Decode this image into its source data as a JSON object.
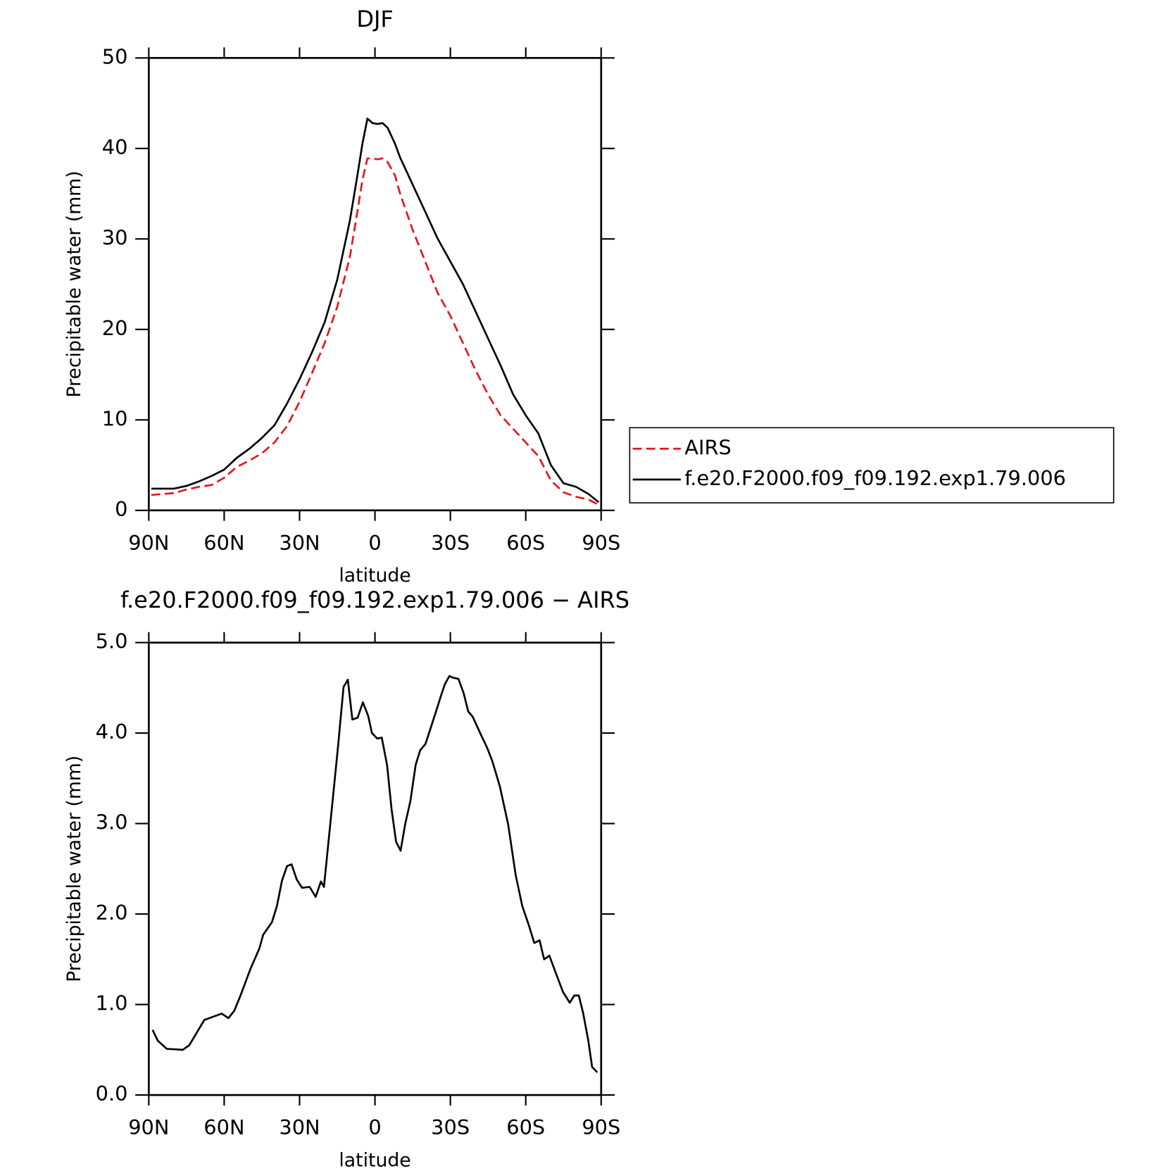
{
  "chart_data": [
    {
      "type": "line",
      "title": "DJF",
      "x_label": "latitude",
      "y_label": "Precipitable water (mm)",
      "xlim": [
        90,
        -90
      ],
      "xticks": [
        {
          "value": 90,
          "label": "90N"
        },
        {
          "value": 60,
          "label": "60N"
        },
        {
          "value": 30,
          "label": "30N"
        },
        0,
        {
          "value": -30,
          "label": "30S"
        },
        {
          "value": -60,
          "label": "60S"
        },
        {
          "value": -90,
          "label": "90S"
        }
      ],
      "ylim": [
        0,
        50
      ],
      "yticks": [
        0,
        10,
        20,
        30,
        40,
        50
      ],
      "legend": "outside-right",
      "x": [
        89,
        85,
        80,
        75,
        70,
        65,
        60,
        55,
        50,
        45,
        40,
        35,
        30,
        25,
        20,
        15,
        10,
        7,
        5,
        3,
        1,
        -1,
        -3,
        -5,
        -8,
        -10,
        -15,
        -20,
        -25,
        -30,
        -35,
        -40,
        -45,
        -50,
        -55,
        -60,
        -65,
        -70,
        -75,
        -80,
        -85,
        -89
      ],
      "series": [
        {
          "name": "AIRS",
          "color": "#e8141a",
          "dashed": true,
          "values": [
            1.7,
            1.8,
            1.9,
            2.3,
            2.6,
            2.8,
            3.6,
            4.8,
            5.5,
            6.3,
            7.5,
            9.3,
            12,
            15.2,
            18.5,
            22.5,
            28,
            33,
            36.5,
            38.9,
            38.9,
            38.8,
            38.9,
            38.5,
            37,
            35,
            31,
            27.5,
            24,
            21.5,
            18.5,
            15.5,
            12.8,
            10.5,
            9,
            7.5,
            6,
            3.3,
            2,
            1.5,
            1.2,
            0.6
          ]
        },
        {
          "name": "f.e20.F2000.f09_f09.192.exp1.79.006",
          "color": "#000000",
          "dashed": false,
          "values": [
            2.4,
            2.4,
            2.4,
            2.7,
            3.2,
            3.8,
            4.5,
            5.8,
            6.8,
            8,
            9.4,
            11.8,
            14.5,
            17.5,
            20.8,
            25.5,
            32,
            37,
            40.5,
            43.3,
            42.8,
            42.7,
            42.8,
            42.3,
            40.5,
            39,
            36,
            33,
            30,
            27.5,
            25,
            22,
            19,
            16,
            12.8,
            10.5,
            8.5,
            5,
            3,
            2.6,
            1.8,
            0.9
          ]
        }
      ]
    },
    {
      "type": "line",
      "title": "f.e20.F2000.f09_f09.192.exp1.79.006 − AIRS",
      "x_label": "latitude",
      "y_label": "Precipitable water (mm)",
      "xlim": [
        90,
        -90
      ],
      "xticks": [
        {
          "value": 90,
          "label": "90N"
        },
        {
          "value": 60,
          "label": "60N"
        },
        {
          "value": 30,
          "label": "30N"
        },
        0,
        {
          "value": -30,
          "label": "30S"
        },
        {
          "value": -60,
          "label": "60S"
        },
        {
          "value": -90,
          "label": "90S"
        }
      ],
      "ylim": [
        0,
        5
      ],
      "yticks": [
        {
          "value": 0,
          "label": "0.0"
        },
        {
          "value": 1,
          "label": "1.0"
        },
        {
          "value": 2,
          "label": "2.0"
        },
        {
          "value": 3,
          "label": "3.0"
        },
        {
          "value": 4,
          "label": "4.0"
        },
        {
          "value": 5,
          "label": "5.0"
        }
      ],
      "x": [
        88.5,
        86.4,
        82.8,
        76.5,
        73.9,
        67.9,
        61,
        58.3,
        56,
        53.5,
        49.6,
        46,
        44.5,
        41,
        39,
        37,
        35,
        33.2,
        31.1,
        29,
        26,
        23.6,
        21.5,
        20.3,
        16.1,
        14.6,
        12.5,
        10.8,
        9,
        6.9,
        4.8,
        2.7,
        1.2,
        -0.9,
        -2.7,
        -4.8,
        -6.6,
        -8.4,
        -10.2,
        -12,
        -14.1,
        -16.2,
        -18,
        -20.1,
        -24.2,
        -26,
        -27.8,
        -29.6,
        -31.4,
        -33.2,
        -35.3,
        -37.1,
        -38.9,
        -42.2,
        -44.6,
        -46.7,
        -49.7,
        -53,
        -56,
        -58.6,
        -61.3,
        -63.4,
        -65.5,
        -67.3,
        -69.4,
        -71.8,
        -74.8,
        -77.5,
        -79.3,
        -81.1,
        -82.8,
        -84.9,
        -86.4,
        -88.5
      ],
      "series": [
        {
          "color": "#000000",
          "dashed": false,
          "values": [
            0.72,
            0.6,
            0.51,
            0.5,
            0.55,
            0.83,
            0.9,
            0.85,
            0.93,
            1.1,
            1.39,
            1.62,
            1.77,
            1.91,
            2.09,
            2.37,
            2.53,
            2.55,
            2.38,
            2.29,
            2.3,
            2.19,
            2.36,
            2.3,
            3.46,
            3.88,
            4.51,
            4.59,
            4.15,
            4.17,
            4.34,
            4.19,
            4,
            3.94,
            3.95,
            3.65,
            3.16,
            2.8,
            2.7,
            2.99,
            3.25,
            3.65,
            3.81,
            3.88,
            4.23,
            4.39,
            4.54,
            4.63,
            4.61,
            4.6,
            4.44,
            4.24,
            4.18,
            3.98,
            3.84,
            3.69,
            3.41,
            2.99,
            2.43,
            2.09,
            1.87,
            1.68,
            1.71,
            1.5,
            1.54,
            1.36,
            1.14,
            1.02,
            1.1,
            1.1,
            0.91,
            0.6,
            0.31,
            0.25
          ]
        }
      ]
    }
  ]
}
